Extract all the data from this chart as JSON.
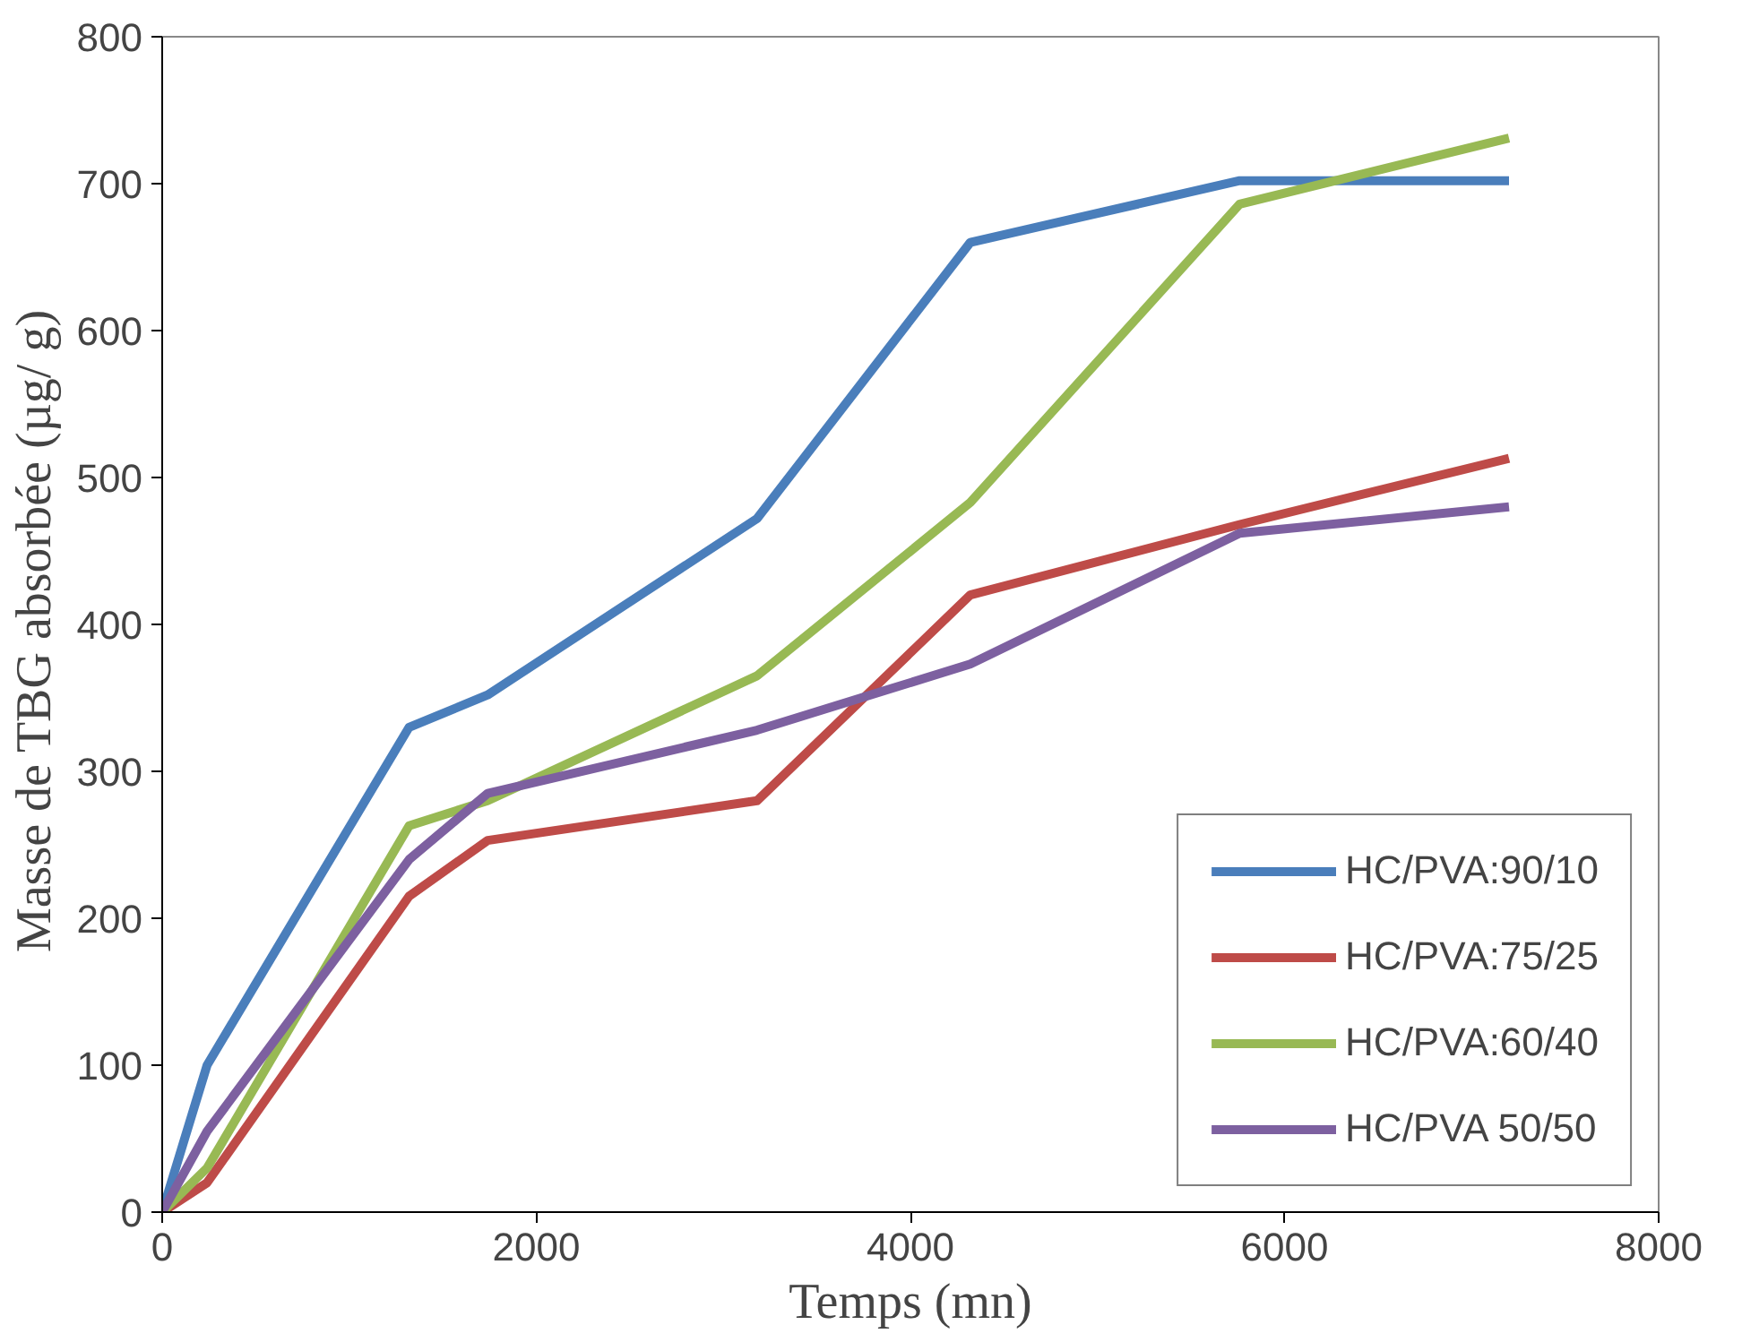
{
  "chart_data": {
    "type": "line",
    "xlabel": "Temps (mn)",
    "ylabel": "Masse de TBG absorbée  (µg/ g)",
    "xlim": [
      0,
      8000
    ],
    "xticks": [
      0,
      2000,
      4000,
      6000,
      8000
    ],
    "ylim": [
      0,
      800
    ],
    "yticks": [
      0,
      100,
      200,
      300,
      400,
      500,
      600,
      700,
      800
    ],
    "grid": false,
    "legend": "bottom right",
    "marker": "none",
    "line_style": "solid",
    "series": [
      {
        "name": "HC/PVA:90/10",
        "color": "#4a7ebb",
        "x": [
          0,
          240,
          1320,
          1740,
          3180,
          4320,
          5760,
          7200
        ],
        "values": [
          0,
          100,
          330,
          352,
          472,
          660,
          702,
          702
        ]
      },
      {
        "name": "HC/PVA:75/25",
        "color": "#be4b48",
        "x": [
          0,
          240,
          1320,
          1740,
          3180,
          4320,
          5760,
          7200
        ],
        "values": [
          0,
          20,
          215,
          253,
          280,
          420,
          468,
          513
        ]
      },
      {
        "name": "HC/PVA:60/40",
        "color": "#98b954",
        "x": [
          0,
          240,
          1320,
          1740,
          3180,
          4320,
          5760,
          7200
        ],
        "values": [
          0,
          30,
          263,
          280,
          365,
          483,
          686,
          731
        ]
      },
      {
        "name": "HC/PVA 50/50",
        "color": "#7d60a0",
        "x": [
          0,
          240,
          1320,
          1740,
          3180,
          4320,
          5760,
          7200
        ],
        "values": [
          0,
          55,
          240,
          285,
          328,
          373,
          462,
          480
        ]
      }
    ]
  }
}
